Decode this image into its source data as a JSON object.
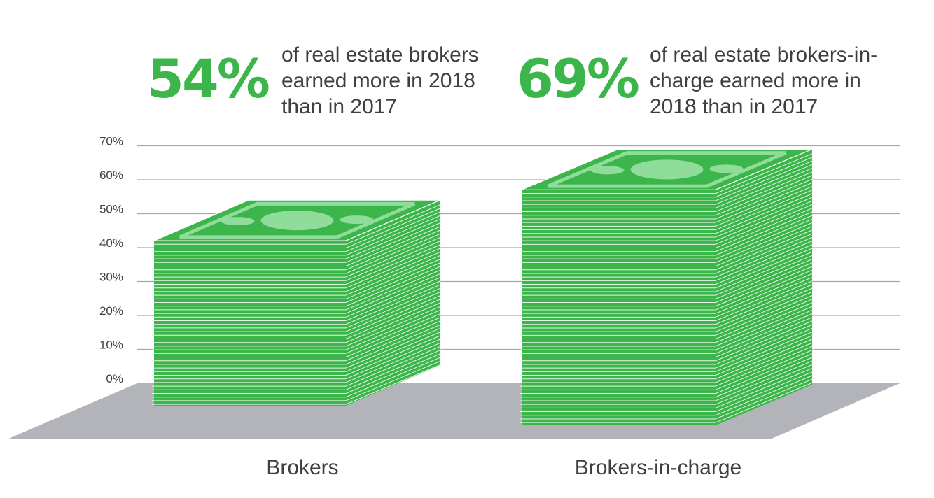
{
  "headline_stats": [
    {
      "value": "54%",
      "text": "of real estate brokers\nearned more in 2018\nthan in 2017"
    },
    {
      "value": "69%",
      "text": "of real estate brokers-in-\ncharge earned more in\n2018 than in 2017"
    }
  ],
  "colors": {
    "accent": "#3cb54a",
    "bill_light": "#8fdc9b",
    "floor": "#b3b4b9",
    "grid": "#a7a7a7",
    "text": "#3f3f3f"
  },
  "chart_data": {
    "type": "bar",
    "categories": [
      "Brokers",
      "Brokers-in-charge"
    ],
    "values": [
      54,
      69
    ],
    "y_ticks": [
      "0%",
      "10%",
      "20%",
      "30%",
      "40%",
      "50%",
      "60%",
      "70%"
    ],
    "ylim": [
      0,
      70
    ],
    "grid": true,
    "title": "",
    "xlabel": "",
    "ylabel": ""
  }
}
